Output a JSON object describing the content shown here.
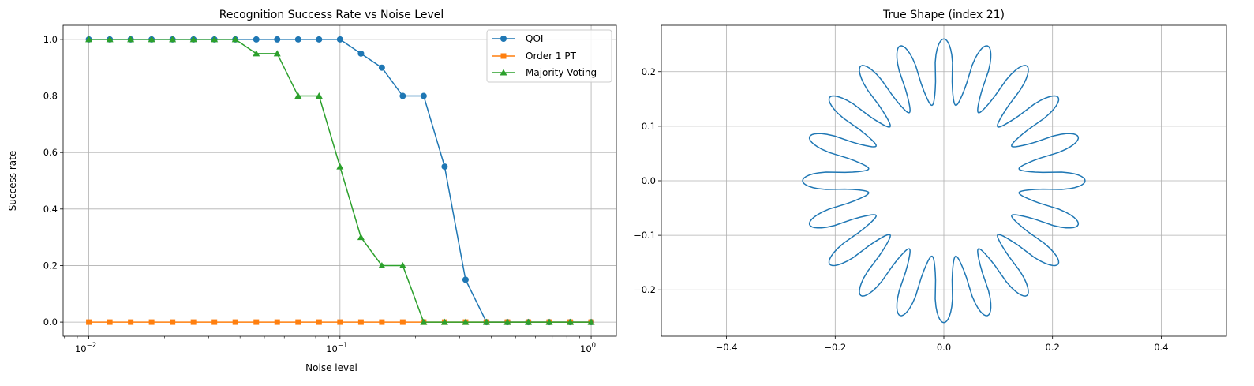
{
  "chart_data": [
    {
      "type": "line",
      "title": "Recognition Success Rate vs Noise Level",
      "xlabel": "Noise level",
      "ylabel": "Success rate",
      "xscale": "log",
      "xlim": [
        0.0079,
        1.26
      ],
      "ylim": [
        -0.05,
        1.05
      ],
      "grid": true,
      "legend_position": "top-right",
      "x": [
        0.01,
        0.01212,
        0.01468,
        0.01778,
        0.02154,
        0.0261,
        0.03162,
        0.03831,
        0.04642,
        0.05623,
        0.06813,
        0.08254,
        0.1,
        0.1212,
        0.1468,
        0.1778,
        0.2154,
        0.261,
        0.3162,
        0.3831,
        0.4642,
        0.5623,
        0.6813,
        0.8254,
        1.0
      ],
      "xtick_labels": [
        "10^-2",
        "10^-1",
        "10^0"
      ],
      "ytick_labels": [
        "0.0",
        "0.2",
        "0.4",
        "0.6",
        "0.8",
        "1.0"
      ],
      "series": [
        {
          "name": "QOI",
          "color": "#1f77b4",
          "marker": "circle",
          "values": [
            1,
            1,
            1,
            1,
            1,
            1,
            1,
            1,
            1,
            1,
            1,
            1,
            1,
            0.95,
            0.9,
            0.8,
            0.8,
            0.55,
            0.15,
            0,
            0,
            0,
            0,
            0,
            0
          ]
        },
        {
          "name": "Order 1 PT",
          "color": "#ff7f0e",
          "marker": "square",
          "values": [
            0,
            0,
            0,
            0,
            0,
            0,
            0,
            0,
            0,
            0,
            0,
            0,
            0,
            0,
            0,
            0,
            0,
            0,
            0,
            0,
            0,
            0,
            0,
            0,
            0
          ]
        },
        {
          "name": "Majority Voting",
          "color": "#2ca02c",
          "marker": "triangle",
          "values": [
            1,
            1,
            1,
            1,
            1,
            1,
            1,
            1,
            0.95,
            0.95,
            0.8,
            0.8,
            0.55,
            0.3,
            0.2,
            0.2,
            0,
            0,
            0,
            0,
            0,
            0,
            0,
            0,
            0
          ]
        }
      ]
    },
    {
      "type": "line",
      "title": "True Shape (index 21)",
      "xlabel": "",
      "ylabel": "",
      "xlim": [
        -0.52,
        0.52
      ],
      "ylim": [
        -0.285,
        0.285
      ],
      "grid": true,
      "xticks": [
        -0.4,
        -0.2,
        0.0,
        0.2,
        0.4
      ],
      "yticks": [
        -0.2,
        -0.1,
        0.0,
        0.1,
        0.2
      ],
      "xtick_labels": [
        "−0.4",
        "−0.2",
        "0.0",
        "0.2",
        "0.4"
      ],
      "ytick_labels": [
        "−0.2",
        "−0.1",
        "0.0",
        "0.1",
        "0.2"
      ],
      "color": "#1f77b4",
      "shape": {
        "kind": "star",
        "petals": 20,
        "r_outer": 0.26,
        "r_inner": 0.14
      }
    }
  ]
}
